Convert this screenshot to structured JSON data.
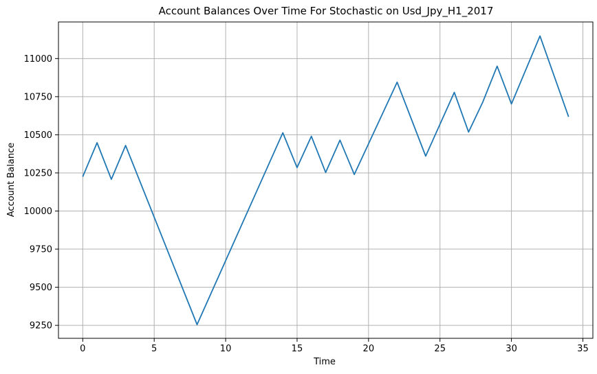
{
  "chart_data": {
    "type": "line",
    "title": "Account Balances Over Time For Stochastic on Usd_Jpy_H1_2017",
    "xlabel": "Time",
    "ylabel": "Account Balance",
    "xlim": [
      -1.7,
      35.7
    ],
    "ylim": [
      9165,
      11240
    ],
    "xticks": [
      0,
      5,
      10,
      15,
      20,
      25,
      30,
      35
    ],
    "yticks": [
      9250,
      9500,
      9750,
      10000,
      10250,
      10500,
      10750,
      11000
    ],
    "grid": true,
    "line_color": "#1f77b4",
    "series": [
      {
        "x": [
          0,
          1,
          2,
          3,
          8,
          14,
          15,
          16,
          17,
          18,
          19,
          22,
          24,
          26,
          27,
          28,
          29,
          30,
          32,
          34
        ],
        "values": [
          10225,
          10448,
          10208,
          10430,
          9255,
          10513,
          10285,
          10490,
          10253,
          10465,
          10240,
          10845,
          10360,
          10778,
          10518,
          10715,
          10950,
          10702,
          11148,
          10618
        ]
      }
    ]
  }
}
